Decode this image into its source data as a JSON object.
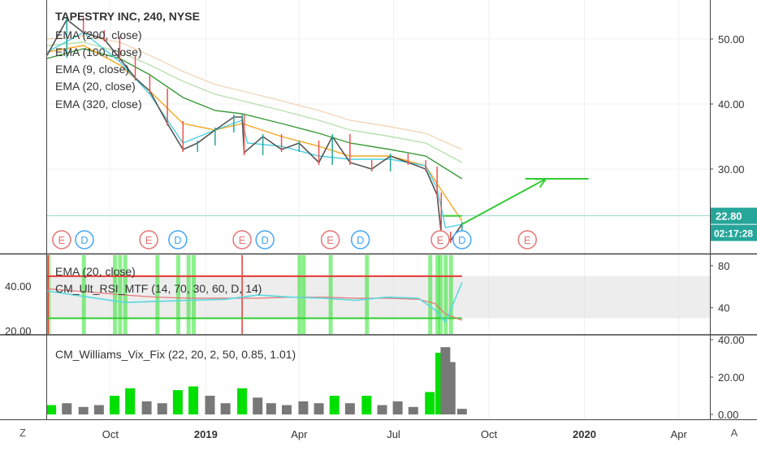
{
  "header": {
    "title": "TAPESTRY INC, 240, NYSE",
    "indicators": [
      "EMA (200, close)",
      "EMA (100, close)",
      "EMA (9, close)",
      "EMA (20, close)",
      "EMA (320, close)"
    ]
  },
  "colors": {
    "price_up": "#26a69a",
    "price_down": "#ef5350",
    "ema9": "#4dd0e1",
    "ema20": "#f5a623",
    "ema100": "#3a9a3a",
    "ema200": "#b9e0b0",
    "ema320": "#f2d6b8",
    "annotation": "#33cc33",
    "current_price": "#26a69a",
    "rsi_line": "#59d9e0",
    "rsi_upper": "#e53935",
    "rsi_lower": "#33cc33",
    "rsi_ema": "#e57373",
    "vix_bar": "#787878",
    "vix_highlight": "#00e000",
    "earnings_badge": "#e57373",
    "dividend_badge": "#42a5f5"
  },
  "price_axis": {
    "ticks": [
      "50.00",
      "40.00",
      "30.00"
    ],
    "current_price": "22.80",
    "countdown": "02:17:28"
  },
  "events": [
    {
      "label": "E",
      "kind": "earnings",
      "date": "2018-08-15"
    },
    {
      "label": "D",
      "kind": "dividend",
      "date": "2018-09-06"
    },
    {
      "label": "E",
      "kind": "earnings",
      "date": "2018-11-07"
    },
    {
      "label": "D",
      "kind": "dividend",
      "date": "2018-12-05"
    },
    {
      "label": "E",
      "kind": "earnings",
      "date": "2019-02-05"
    },
    {
      "label": "D",
      "kind": "dividend",
      "date": "2019-02-27"
    },
    {
      "label": "E",
      "kind": "earnings",
      "date": "2019-05-01"
    },
    {
      "label": "D",
      "kind": "dividend",
      "date": "2019-05-30"
    },
    {
      "label": "E",
      "kind": "earnings",
      "date": "2019-08-15"
    },
    {
      "label": "D",
      "kind": "dividend",
      "date": "2019-09-05"
    },
    {
      "label": "E",
      "kind": "earnings",
      "date": "2019-11-07"
    }
  ],
  "rsi_panel": {
    "labels": [
      "EMA (20, close)",
      "CM_Ult_RSI_MTF (14, 70, 30, 60, D, 14)"
    ],
    "left_ticks": [
      "40.00",
      "20.00"
    ],
    "right_ticks": [
      "80",
      "40"
    ]
  },
  "vix_panel": {
    "label": "CM_Williams_Vix_Fix (22, 20, 2, 50, 0.85, 1.01)",
    "ticks": [
      "40.00",
      "20.00",
      "0.00"
    ]
  },
  "time_axis": {
    "labels": [
      "Oct",
      "2019",
      "Apr",
      "Jul",
      "Oct",
      "2020",
      "Apr"
    ]
  },
  "corner_buttons": {
    "left": "Z",
    "right": "A"
  },
  "chart_data": {
    "type": "line",
    "title": "TAPESTRY INC, 240, NYSE",
    "x_range": [
      "2018-08-01",
      "2020-05-01"
    ],
    "y_range": [
      17,
      56
    ],
    "series": [
      {
        "name": "TAPESTRY INC, 240, NYSE",
        "x": [
          "2018-08-01",
          "2018-08-20",
          "2018-09-05",
          "2018-09-25",
          "2018-10-10",
          "2018-10-25",
          "2018-11-08",
          "2018-11-25",
          "2018-12-10",
          "2018-12-24",
          "2019-01-10",
          "2019-01-28",
          "2019-02-05",
          "2019-02-07",
          "2019-02-25",
          "2019-03-15",
          "2019-04-01",
          "2019-04-20",
          "2019-05-03",
          "2019-05-20",
          "2019-06-10",
          "2019-06-28",
          "2019-07-15",
          "2019-08-01",
          "2019-08-12",
          "2019-08-16",
          "2019-08-25",
          "2019-09-05"
        ],
        "values": [
          47.5,
          53,
          51,
          50,
          47,
          44,
          42,
          37,
          33,
          34,
          36,
          38,
          38,
          32.5,
          35,
          33,
          34,
          31,
          35,
          31,
          30,
          32,
          31,
          30,
          26,
          20,
          19,
          21.5
        ]
      },
      {
        "name": "EMA (9, close)",
        "x": [
          "2018-08-01",
          "2018-09-05",
          "2018-10-10",
          "2018-11-08",
          "2018-12-10",
          "2019-01-10",
          "2019-02-05",
          "2019-02-10",
          "2019-03-15",
          "2019-04-20",
          "2019-05-20",
          "2019-06-28",
          "2019-08-01",
          "2019-08-12",
          "2019-08-20",
          "2019-09-05"
        ],
        "values": [
          48,
          51,
          46.5,
          41.5,
          34,
          36,
          37.5,
          34,
          33.5,
          32,
          31.5,
          31.5,
          30.5,
          27,
          21,
          21.5
        ]
      },
      {
        "name": "EMA (20, close)",
        "x": [
          "2018-08-01",
          "2018-09-05",
          "2018-10-10",
          "2018-11-08",
          "2018-12-10",
          "2019-01-10",
          "2019-02-05",
          "2019-03-15",
          "2019-04-20",
          "2019-05-20",
          "2019-06-28",
          "2019-08-01",
          "2019-08-15",
          "2019-09-05"
        ],
        "values": [
          48,
          49,
          46,
          42,
          37,
          36,
          37,
          35,
          33.5,
          32,
          32,
          30.5,
          27,
          22
        ]
      },
      {
        "name": "EMA (100, close)",
        "x": [
          "2018-08-01",
          "2018-09-05",
          "2018-10-10",
          "2018-11-08",
          "2018-12-10",
          "2019-01-10",
          "2019-02-05",
          "2019-03-15",
          "2019-04-20",
          "2019-05-20",
          "2019-06-28",
          "2019-08-01",
          "2019-09-05"
        ],
        "values": [
          47,
          48.5,
          47,
          44.5,
          41,
          39,
          38.5,
          37,
          35.5,
          34,
          33,
          32,
          28.5
        ]
      },
      {
        "name": "EMA (200, close)",
        "x": [
          "2018-08-01",
          "2018-09-05",
          "2018-10-10",
          "2018-11-08",
          "2018-12-10",
          "2019-01-10",
          "2019-02-05",
          "2019-03-15",
          "2019-04-20",
          "2019-05-20",
          "2019-06-28",
          "2019-08-01",
          "2019-09-05"
        ],
        "values": [
          49,
          49.5,
          48,
          46,
          43.5,
          41.5,
          40.5,
          39,
          37.5,
          36,
          35,
          34,
          31
        ]
      },
      {
        "name": "EMA (320, close)",
        "x": [
          "2018-08-01",
          "2018-09-05",
          "2018-10-10",
          "2018-11-08",
          "2018-12-10",
          "2019-01-10",
          "2019-02-05",
          "2019-03-15",
          "2019-04-20",
          "2019-05-20",
          "2019-06-28",
          "2019-08-01",
          "2019-09-05"
        ],
        "values": [
          50,
          50.5,
          49.5,
          47.5,
          45,
          43,
          42,
          40.5,
          39,
          37.5,
          36.5,
          35.5,
          33
        ]
      }
    ],
    "annotations": {
      "arrow": {
        "from": [
          "2019-09-05",
          21.5
        ],
        "to": [
          "2019-11-25",
          28.5
        ]
      },
      "target_line": {
        "from": [
          "2019-11-05",
          28.5
        ],
        "to": [
          "2020-01-05",
          28.5
        ]
      },
      "resistance_line": {
        "from": [
          "2019-08-18",
          22.8
        ],
        "to": [
          "2019-09-05",
          22.8
        ]
      },
      "current_price_line": 22.8
    },
    "rsi": {
      "y_range": [
        15,
        90
      ],
      "upper_band": 70,
      "lower_band": 30,
      "x": [
        "2018-08-01",
        "2018-09-10",
        "2018-10-15",
        "2018-11-15",
        "2018-12-15",
        "2019-01-20",
        "2019-02-20",
        "2019-03-25",
        "2019-04-25",
        "2019-05-25",
        "2019-06-25",
        "2019-07-25",
        "2019-08-10",
        "2019-08-20",
        "2019-09-05"
      ],
      "rsi_values": [
        56,
        50,
        45,
        46,
        47,
        48,
        52,
        50,
        49,
        47,
        50,
        49,
        38,
        26,
        64
      ],
      "ema_values": [
        58,
        55,
        52,
        50,
        49,
        49,
        49,
        50,
        50,
        49,
        49,
        48,
        44,
        34,
        28
      ],
      "highlight_dates": [
        "2018-08-02",
        "2018-09-05",
        "2018-10-05",
        "2018-10-10",
        "2018-10-15",
        "2018-11-15",
        "2018-12-05",
        "2018-12-15",
        "2018-12-20",
        "2019-04-01",
        "2019-04-05",
        "2019-05-01",
        "2019-06-05",
        "2019-08-05",
        "2019-08-12",
        "2019-08-15",
        "2019-08-20",
        "2019-08-25"
      ],
      "marker_dates": [
        "2018-08-02",
        "2019-02-05"
      ]
    },
    "vix": {
      "y_range": [
        0,
        40
      ],
      "x": [
        "2018-08-05",
        "2018-08-20",
        "2018-09-05",
        "2018-09-20",
        "2018-10-05",
        "2018-10-20",
        "2018-11-05",
        "2018-11-20",
        "2018-12-05",
        "2018-12-20",
        "2019-01-05",
        "2019-01-20",
        "2019-02-05",
        "2019-02-20",
        "2019-03-05",
        "2019-03-20",
        "2019-04-05",
        "2019-04-20",
        "2019-05-05",
        "2019-05-20",
        "2019-06-05",
        "2019-06-20",
        "2019-07-05",
        "2019-07-20",
        "2019-08-05",
        "2019-08-15",
        "2019-08-20",
        "2019-08-25",
        "2019-09-05"
      ],
      "values": [
        5,
        6,
        4,
        5,
        10,
        14,
        7,
        6,
        13,
        15,
        10,
        6,
        14,
        9,
        6,
        5,
        7,
        6,
        10,
        6,
        10,
        5,
        7,
        4,
        12,
        33,
        36,
        28,
        3
      ],
      "highlight": [
        true,
        false,
        false,
        false,
        true,
        true,
        false,
        false,
        true,
        true,
        false,
        false,
        true,
        false,
        false,
        false,
        false,
        false,
        true,
        false,
        true,
        false,
        false,
        false,
        true,
        true,
        false,
        false,
        false
      ]
    }
  }
}
